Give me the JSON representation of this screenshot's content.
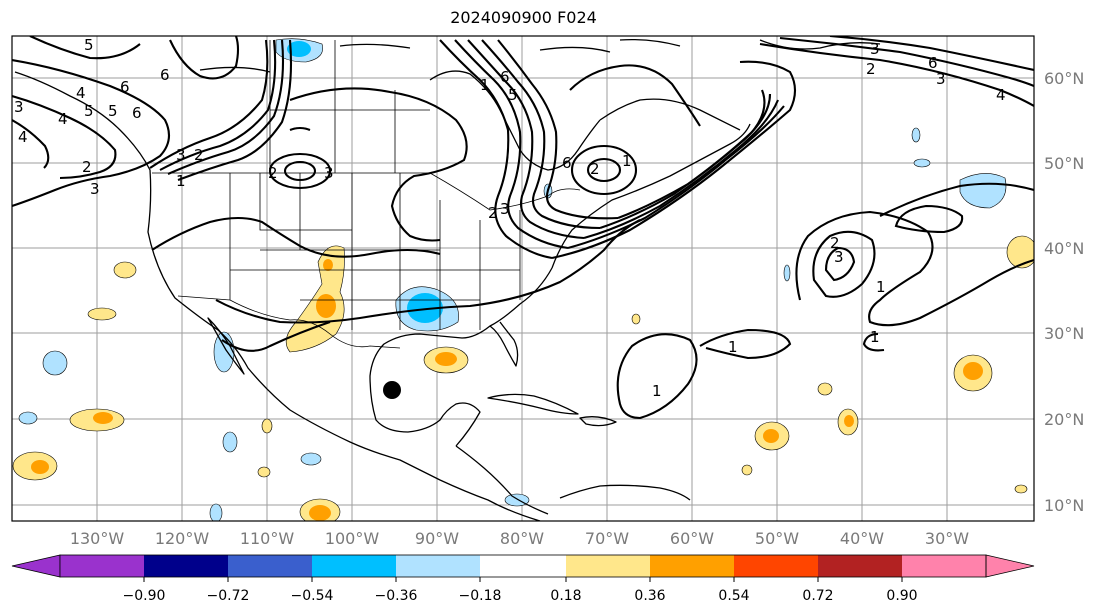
{
  "title": "2024090900 F024",
  "lat_labels": [
    "60°N",
    "50°N",
    "40°N",
    "30°N",
    "20°N",
    "10°N"
  ],
  "lon_labels": [
    "130°W",
    "120°W",
    "110°W",
    "100°W",
    "90°W",
    "80°W",
    "70°W",
    "60°W",
    "50°W",
    "40°W",
    "30°W"
  ],
  "colorbar": {
    "colors": [
      "#9a32cd",
      "#00008b",
      "#3a5fcd",
      "#00bfff",
      "#b0e2ff",
      "#ffffff",
      "#ffe78b",
      "#ffa000",
      "#ff4500",
      "#b22222",
      "#ff82ab"
    ],
    "ticks": [
      "−0.90",
      "−0.72",
      "−0.54",
      "−0.36",
      "−0.18",
      "0.18",
      "0.36",
      "0.54",
      "0.72",
      "0.90"
    ]
  },
  "contour_labels": [
    "5",
    "6",
    "5",
    "4",
    "3",
    "2",
    "6",
    "4",
    "3",
    "2",
    "3",
    "4",
    "5",
    "6",
    "3",
    "2",
    "1",
    "2",
    "3",
    "1",
    "6",
    "5",
    "2",
    "3",
    "6",
    "4",
    "3",
    "2",
    "1",
    "6",
    "1",
    "2",
    "3",
    "1",
    "1",
    "1"
  ],
  "marker": "storm-center"
}
